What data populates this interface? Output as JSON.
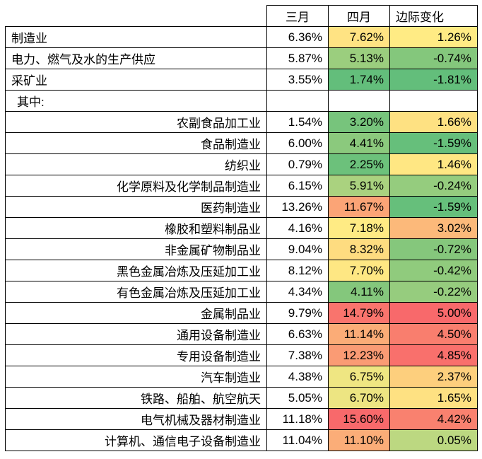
{
  "chart_data": {
    "type": "table",
    "columns": [
      "三月",
      "四月",
      "边际变化"
    ],
    "color_scale": {
      "low": "#63BE7B",
      "mid": "#FFEB84",
      "high": "#F8696B"
    },
    "rows": [
      {
        "label": "制造业",
        "align": "left",
        "march": "6.36%",
        "april": "7.62%",
        "change": "1.26%",
        "april_bg": "#FFE383",
        "change_bg": "#FFEB84"
      },
      {
        "label": "电力、燃气及水的生产供应",
        "align": "left",
        "march": "5.87%",
        "april": "5.13%",
        "change": "-0.74%",
        "april_bg": "#9BCE7E",
        "change_bg": "#84C77C"
      },
      {
        "label": "采矿业",
        "align": "left",
        "march": "3.55%",
        "april": "1.74%",
        "change": "-1.81%",
        "april_bg": "#63BE7B",
        "change_bg": "#63BE7B"
      },
      {
        "label": "其中:",
        "align": "subhead",
        "march": "",
        "april": "",
        "change": "",
        "april_bg": null,
        "change_bg": null
      },
      {
        "label": "农副食品加工业",
        "align": "right",
        "march": "1.54%",
        "april": "3.20%",
        "change": "1.66%",
        "april_bg": "#77C47C",
        "change_bg": "#FEE182"
      },
      {
        "label": "食品制造业",
        "align": "right",
        "march": "6.00%",
        "april": "4.41%",
        "change": "-1.59%",
        "april_bg": "#8BC97D",
        "change_bg": "#66BF7B"
      },
      {
        "label": "纺织业",
        "align": "right",
        "march": "0.79%",
        "april": "2.25%",
        "change": "1.46%",
        "april_bg": "#6CC17B",
        "change_bg": "#FFE783"
      },
      {
        "label": "化学原料及化学制品制造业",
        "align": "right",
        "march": "6.15%",
        "april": "5.91%",
        "change": "-0.24%",
        "april_bg": "#AAD27F",
        "change_bg": "#95CC7E"
      },
      {
        "label": "医药制造业",
        "align": "right",
        "march": "13.26%",
        "april": "11.67%",
        "change": "-1.59%",
        "april_bg": "#FBA476",
        "change_bg": "#66BF7B"
      },
      {
        "label": "橡胶和塑料制品业",
        "align": "right",
        "march": "4.16%",
        "april": "7.18%",
        "change": "3.02%",
        "april_bg": "#FFEB84",
        "change_bg": "#FCB97A"
      },
      {
        "label": "非金属矿物制品业",
        "align": "right",
        "march": "9.04%",
        "april": "8.32%",
        "change": "-0.72%",
        "april_bg": "#FEDC80",
        "change_bg": "#85C77C"
      },
      {
        "label": "黑色金属冶炼及压延加工业",
        "align": "right",
        "march": "8.12%",
        "april": "7.70%",
        "change": "-0.42%",
        "april_bg": "#FEE783",
        "change_bg": "#90CB7D"
      },
      {
        "label": "有色金属冶炼及压延加工业",
        "align": "right",
        "march": "4.34%",
        "april": "4.11%",
        "change": "-0.22%",
        "april_bg": "#84C77C",
        "change_bg": "#96CC7E"
      },
      {
        "label": "金属制品业",
        "align": "right",
        "march": "9.79%",
        "april": "14.79%",
        "change": "5.00%",
        "april_bg": "#F9746D",
        "change_bg": "#F8696B"
      },
      {
        "label": "通用设备制造业",
        "align": "right",
        "march": "6.63%",
        "april": "11.14%",
        "change": "4.50%",
        "april_bg": "#FBAC77",
        "change_bg": "#F97E6E"
      },
      {
        "label": "专用设备制造业",
        "align": "right",
        "march": "7.38%",
        "april": "12.23%",
        "change": "4.85%",
        "april_bg": "#FA9B74",
        "change_bg": "#F9706C"
      },
      {
        "label": "汽车制造业",
        "align": "right",
        "march": "4.38%",
        "april": "6.75%",
        "change": "2.37%",
        "april_bg": "#EFE682",
        "change_bg": "#FDCF7D"
      },
      {
        "label": "铁路、船舶、航空航天",
        "align": "right",
        "march": "5.05%",
        "april": "6.70%",
        "change": "1.65%",
        "april_bg": "#EDE582",
        "change_bg": "#FEE182"
      },
      {
        "label": "电气机械及器材制造业",
        "align": "right",
        "march": "11.18%",
        "april": "15.60%",
        "change": "4.42%",
        "april_bg": "#F8696B",
        "change_bg": "#F9816F"
      },
      {
        "label": "计算机、通信电子设备制造业",
        "align": "right",
        "march": "11.04%",
        "april": "11.10%",
        "change": "0.05%",
        "april_bg": "#FBAD78",
        "change_bg": "#BCD881"
      }
    ]
  }
}
